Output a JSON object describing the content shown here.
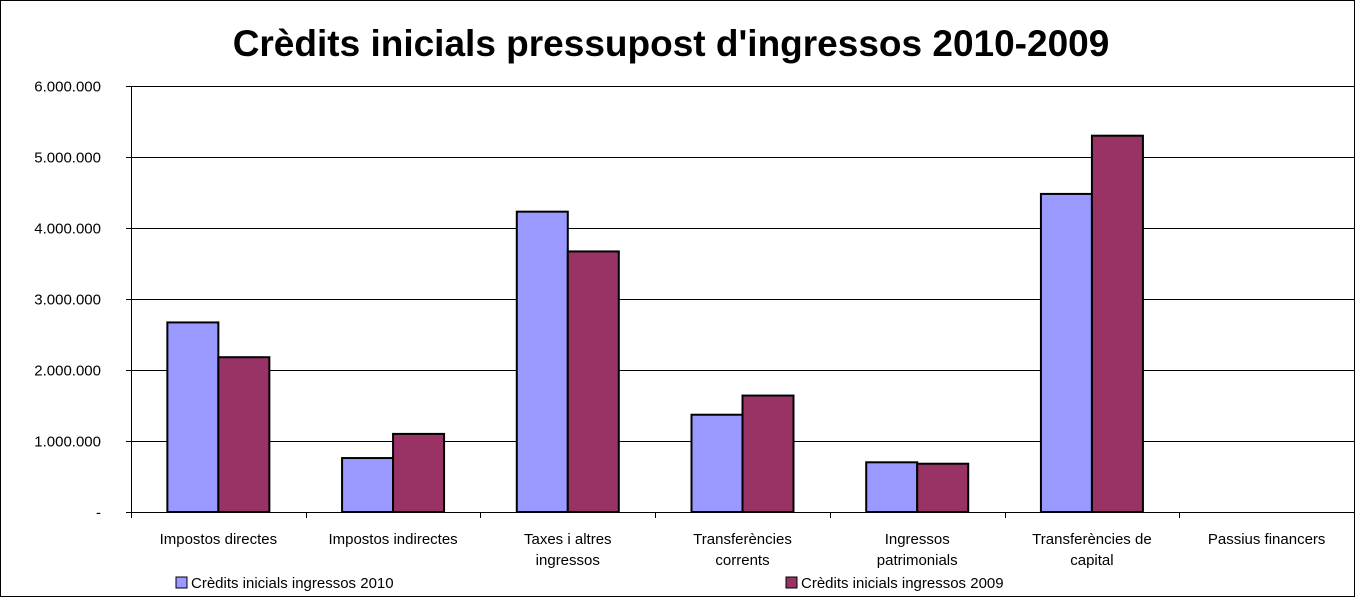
{
  "chart_data": {
    "type": "bar",
    "title": "Crèdits inicials pressupost d'ingressos 2010-2009",
    "categories": [
      [
        "Impostos directes"
      ],
      [
        "Impostos indirectes"
      ],
      [
        "Taxes i altres",
        "ingressos"
      ],
      [
        "Transferències",
        "corrents"
      ],
      [
        "Ingressos",
        "patrimonials"
      ],
      [
        "Transferències de",
        "capital"
      ],
      [
        "Passius financers"
      ]
    ],
    "series": [
      {
        "name": "Crèdits inicials ingressos 2010",
        "color": "#9999FF",
        "values": [
          2670000,
          760000,
          4230000,
          1370000,
          700000,
          4480000,
          0
        ]
      },
      {
        "name": "Crèdits inicials ingressos 2009",
        "color": "#993366",
        "values": [
          2180000,
          1100000,
          3670000,
          1640000,
          680000,
          5300000,
          0
        ]
      }
    ],
    "ylim": [
      0,
      6000000
    ],
    "yticks": [
      {
        "value": 0,
        "label": "-"
      },
      {
        "value": 1000000,
        "label": "1.000.000"
      },
      {
        "value": 2000000,
        "label": "2.000.000"
      },
      {
        "value": 3000000,
        "label": "3.000.000"
      },
      {
        "value": 4000000,
        "label": "4.000.000"
      },
      {
        "value": 5000000,
        "label": "5.000.000"
      },
      {
        "value": 6000000,
        "label": "6.000.000"
      }
    ],
    "grid": true,
    "legend": "bottom"
  }
}
